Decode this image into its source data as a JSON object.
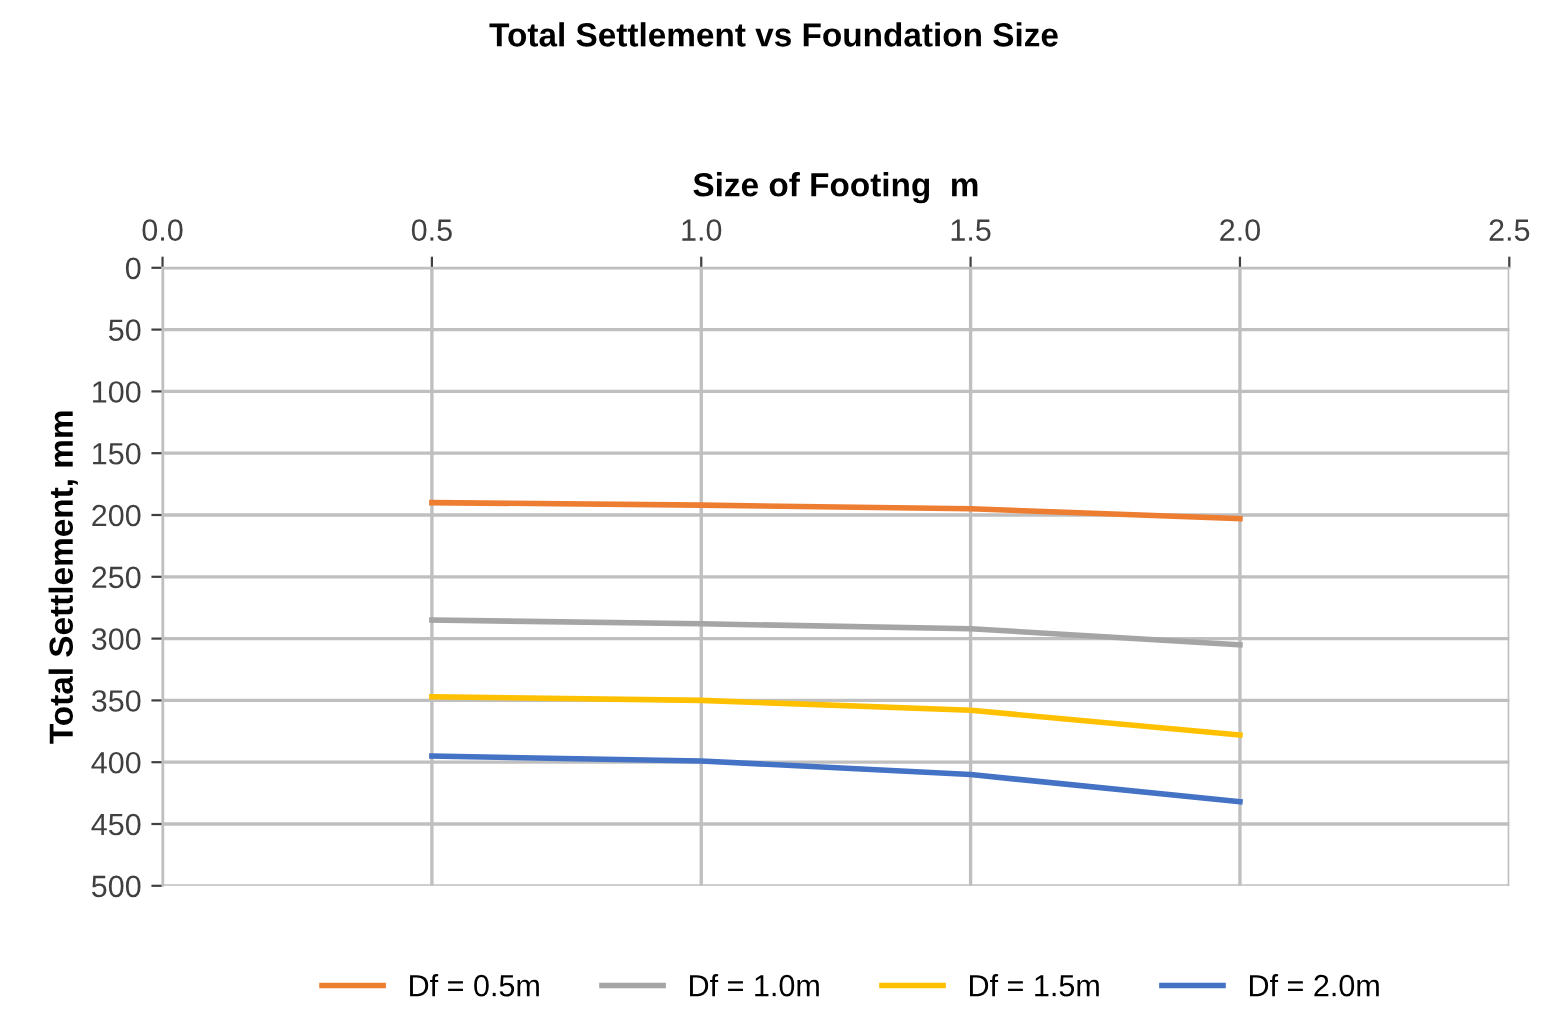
{
  "chart_data": {
    "type": "line",
    "title": "Total Settlement vs Foundation Size",
    "xlabel": "Size of Footing  m",
    "ylabel": "Total Settlement, mm",
    "x": [
      0.5,
      1.0,
      1.5,
      2.0
    ],
    "series": [
      {
        "name": "Df = 0.5m",
        "color": "#ed7d31",
        "values": [
          190,
          192,
          195,
          203
        ]
      },
      {
        "name": "Df = 1.0m",
        "color": "#a5a5a5",
        "values": [
          285,
          288,
          292,
          305
        ]
      },
      {
        "name": "Df = 1.5m",
        "color": "#ffc000",
        "values": [
          347,
          350,
          358,
          378
        ]
      },
      {
        "name": "Df = 2.0m",
        "color": "#4472c4",
        "values": [
          395,
          399,
          410,
          432
        ]
      }
    ],
    "xlim": [
      0,
      2.5
    ],
    "xticks": [
      {
        "value": 0,
        "label": "0.0"
      },
      {
        "value": 0.5,
        "label": "0.5"
      },
      {
        "value": 1,
        "label": "1.0"
      },
      {
        "value": 1.5,
        "label": "1.5"
      },
      {
        "value": 2,
        "label": "2.0"
      },
      {
        "value": 2.5,
        "label": "2.5"
      }
    ],
    "ylim": [
      500,
      0
    ],
    "yticks": [
      0,
      50,
      100,
      150,
      200,
      250,
      300,
      350,
      400,
      450,
      500
    ],
    "grid": true,
    "legend": "bottom",
    "marker": "none",
    "line_style": "solid"
  }
}
